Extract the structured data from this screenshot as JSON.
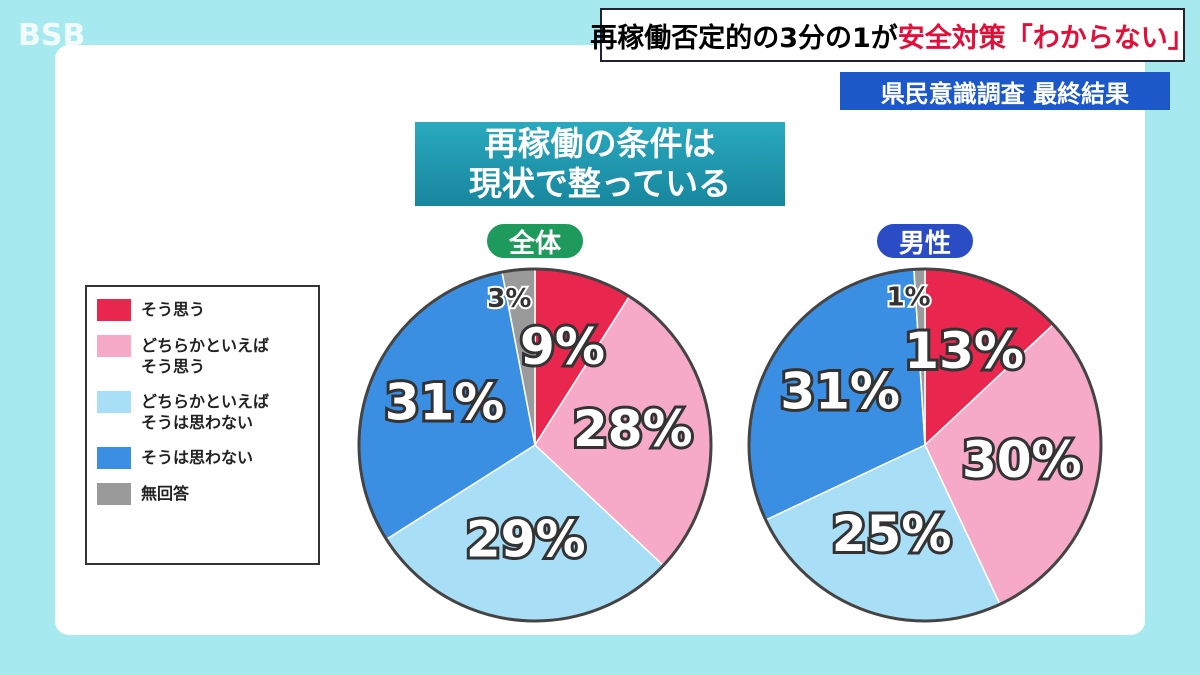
{
  "logo": "BSB",
  "headline": {
    "plain": "再稼働否定的の3分の1が",
    "emphasis": "安全対策「わからない」"
  },
  "subheadline": "県民意識調査 最終結果",
  "chart_data": {
    "type": "pie",
    "title": [
      "再稼働の条件は",
      "現状で整っている"
    ],
    "categories": [
      "そう思う",
      "どちらかといえば\nそう思う",
      "どちらかといえば\nそうは思わない",
      "そうは思わない",
      "無回答"
    ],
    "colors": [
      "#e8264e",
      "#f7aac8",
      "#a9def7",
      "#3b8fe3",
      "#9a9a9a"
    ],
    "series": [
      {
        "name": "全体",
        "color": "#1d9a5c",
        "values": [
          9,
          28,
          29,
          31,
          3
        ],
        "value_labels": [
          "9%",
          "28%",
          "29%",
          "31%",
          "3%"
        ]
      },
      {
        "name": "男性",
        "color": "#2a4cc4",
        "values": [
          13,
          30,
          25,
          31,
          1
        ],
        "value_labels": [
          "13%",
          "30%",
          "25%",
          "31%",
          "1%"
        ]
      }
    ]
  }
}
